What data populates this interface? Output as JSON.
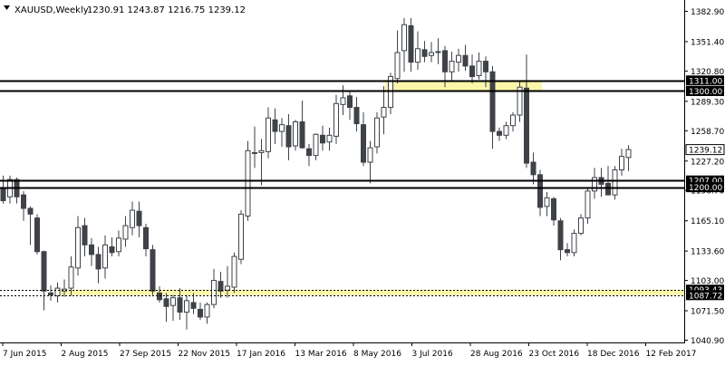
{
  "header": {
    "symbol_label": "XAUUSD,Weekly",
    "ohlc_label": "1230.91 1243.87 1216.75 1239.12"
  },
  "colors": {
    "candle_body": "#3f4247",
    "background": "#ffffff",
    "level_line": "#000000",
    "zone_fill": "#fbf6a9",
    "price_label_bg": "#000000",
    "price_label_text": "#ffffff",
    "axis_text": "#000000"
  },
  "chart_data": {
    "type": "candlestick",
    "title": "XAUUSD,Weekly",
    "ohlc_readout": [
      1230.91,
      1243.87,
      1216.75,
      1239.12
    ],
    "ylim": [
      1040.9,
      1382.9
    ],
    "grid": false,
    "y_ticks": [
      "1382.90",
      "1351.40",
      "1320.80",
      "1289.30",
      "1258.70",
      "1227.20",
      "1196.70",
      "1165.10",
      "1133.60",
      "1103.00",
      "1071.50",
      "1040.90"
    ],
    "x_labels": [
      "7 Jun 2015",
      "2 Aug 2015",
      "27 Sep 2015",
      "22 Nov 2015",
      "17 Jan 2016",
      "13 Mar 2016",
      "8 May 2016",
      "3 Jul 2016",
      "28 Aug 2016",
      "23 Oct 2016",
      "18 Dec 2016",
      "12 Feb 2017"
    ],
    "horizontal_levels": [
      1311.0,
      1300.0,
      1207.0,
      1200.0,
      1093.43,
      1087.72
    ],
    "zones": [
      [
        1300.0,
        1311.0
      ],
      [
        1087.72,
        1093.43
      ]
    ],
    "price_labels": [
      {
        "value": 1311.0,
        "text": "1311.00",
        "style": "dark"
      },
      {
        "value": 1300.0,
        "text": "1300.00",
        "style": "dark"
      },
      {
        "value": 1239.12,
        "text": "1239.12",
        "style": "light"
      },
      {
        "value": 1207.0,
        "text": "1207.00",
        "style": "dark"
      },
      {
        "value": 1200.0,
        "text": "1200.00",
        "style": "dark"
      },
      {
        "value": 1093.43,
        "text": "1093.43",
        "style": "dark"
      },
      {
        "value": 1087.72,
        "text": "1087.72",
        "style": "dark"
      }
    ],
    "candles": [
      [
        1198,
        1212,
        1183,
        1186
      ],
      [
        1190,
        1212,
        1183,
        1208
      ],
      [
        1208,
        1210,
        1183,
        1190
      ],
      [
        1192,
        1196,
        1165,
        1178
      ],
      [
        1178,
        1180,
        1140,
        1172
      ],
      [
        1168,
        1172,
        1130,
        1133
      ],
      [
        1133,
        1134,
        1072,
        1092
      ],
      [
        1090,
        1098,
        1082,
        1088
      ],
      [
        1087,
        1101,
        1080,
        1095
      ],
      [
        1092,
        1104,
        1086,
        1094
      ],
      [
        1095,
        1128,
        1087,
        1117
      ],
      [
        1116,
        1170,
        1108,
        1158
      ],
      [
        1160,
        1168,
        1128,
        1140
      ],
      [
        1140,
        1147,
        1118,
        1130
      ],
      [
        1130,
        1138,
        1100,
        1115
      ],
      [
        1116,
        1150,
        1105,
        1140
      ],
      [
        1138,
        1148,
        1128,
        1132
      ],
      [
        1133,
        1155,
        1128,
        1147
      ],
      [
        1146,
        1170,
        1138,
        1160
      ],
      [
        1158,
        1185,
        1150,
        1176
      ],
      [
        1175,
        1185,
        1148,
        1160
      ],
      [
        1158,
        1162,
        1128,
        1136
      ],
      [
        1135,
        1140,
        1088,
        1092
      ],
      [
        1090,
        1097,
        1080,
        1083
      ],
      [
        1084,
        1090,
        1060,
        1076
      ],
      [
        1077,
        1088,
        1061,
        1085
      ],
      [
        1085,
        1095,
        1062,
        1070
      ],
      [
        1070,
        1088,
        1052,
        1082
      ],
      [
        1080,
        1090,
        1068,
        1074
      ],
      [
        1073,
        1080,
        1062,
        1065
      ],
      [
        1065,
        1080,
        1058,
        1078
      ],
      [
        1078,
        1115,
        1074,
        1103
      ],
      [
        1102,
        1112,
        1085,
        1092
      ],
      [
        1093,
        1118,
        1085,
        1097
      ],
      [
        1096,
        1132,
        1090,
        1128
      ],
      [
        1125,
        1176,
        1120,
        1172
      ],
      [
        1170,
        1248,
        1165,
        1238
      ],
      [
        1236,
        1263,
        1220,
        1236
      ],
      [
        1236,
        1250,
        1202,
        1238
      ],
      [
        1237,
        1283,
        1230,
        1272
      ],
      [
        1270,
        1282,
        1245,
        1258
      ],
      [
        1258,
        1272,
        1242,
        1265
      ],
      [
        1264,
        1276,
        1228,
        1242
      ],
      [
        1243,
        1270,
        1238,
        1268
      ],
      [
        1268,
        1290,
        1240,
        1241
      ],
      [
        1240,
        1245,
        1222,
        1233
      ],
      [
        1233,
        1256,
        1228,
        1255
      ],
      [
        1254,
        1264,
        1238,
        1246
      ],
      [
        1247,
        1262,
        1238,
        1254
      ],
      [
        1253,
        1296,
        1245,
        1287
      ],
      [
        1286,
        1306,
        1275,
        1293
      ],
      [
        1295,
        1299,
        1270,
        1283
      ],
      [
        1283,
        1294,
        1258,
        1266
      ],
      [
        1265,
        1278,
        1222,
        1226
      ],
      [
        1226,
        1248,
        1204,
        1241
      ],
      [
        1242,
        1278,
        1235,
        1272
      ],
      [
        1273,
        1305,
        1255,
        1283
      ],
      [
        1283,
        1319,
        1276,
        1315
      ],
      [
        1313,
        1363,
        1308,
        1340
      ],
      [
        1342,
        1376,
        1320,
        1369
      ],
      [
        1368,
        1376,
        1320,
        1330
      ],
      [
        1330,
        1362,
        1322,
        1344
      ],
      [
        1343,
        1352,
        1330,
        1336
      ],
      [
        1337,
        1351,
        1330,
        1340
      ],
      [
        1341,
        1355,
        1328,
        1341
      ],
      [
        1342,
        1347,
        1304,
        1320
      ],
      [
        1320,
        1341,
        1310,
        1331
      ],
      [
        1330,
        1344,
        1320,
        1337
      ],
      [
        1337,
        1348,
        1321,
        1326
      ],
      [
        1326,
        1338,
        1308,
        1315
      ],
      [
        1316,
        1340,
        1312,
        1331
      ],
      [
        1331,
        1336,
        1304,
        1320
      ],
      [
        1320,
        1326,
        1240,
        1258
      ],
      [
        1258,
        1262,
        1248,
        1254
      ],
      [
        1254,
        1268,
        1250,
        1264
      ],
      [
        1264,
        1278,
        1258,
        1275
      ],
      [
        1275,
        1310,
        1268,
        1304
      ],
      [
        1303,
        1338,
        1220,
        1225
      ],
      [
        1226,
        1236,
        1203,
        1213
      ],
      [
        1213,
        1218,
        1170,
        1179
      ],
      [
        1180,
        1195,
        1170,
        1189
      ],
      [
        1188,
        1190,
        1160,
        1166
      ],
      [
        1165,
        1168,
        1124,
        1135
      ],
      [
        1135,
        1142,
        1128,
        1132
      ],
      [
        1132,
        1156,
        1128,
        1152
      ],
      [
        1152,
        1172,
        1150,
        1168
      ],
      [
        1168,
        1200,
        1162,
        1196
      ],
      [
        1196,
        1220,
        1188,
        1210
      ],
      [
        1210,
        1220,
        1190,
        1203
      ],
      [
        1204,
        1222,
        1195,
        1192
      ],
      [
        1192,
        1222,
        1187,
        1218
      ],
      [
        1218,
        1240,
        1212,
        1232
      ],
      [
        1230.91,
        1243.87,
        1216.75,
        1239.12
      ]
    ]
  }
}
